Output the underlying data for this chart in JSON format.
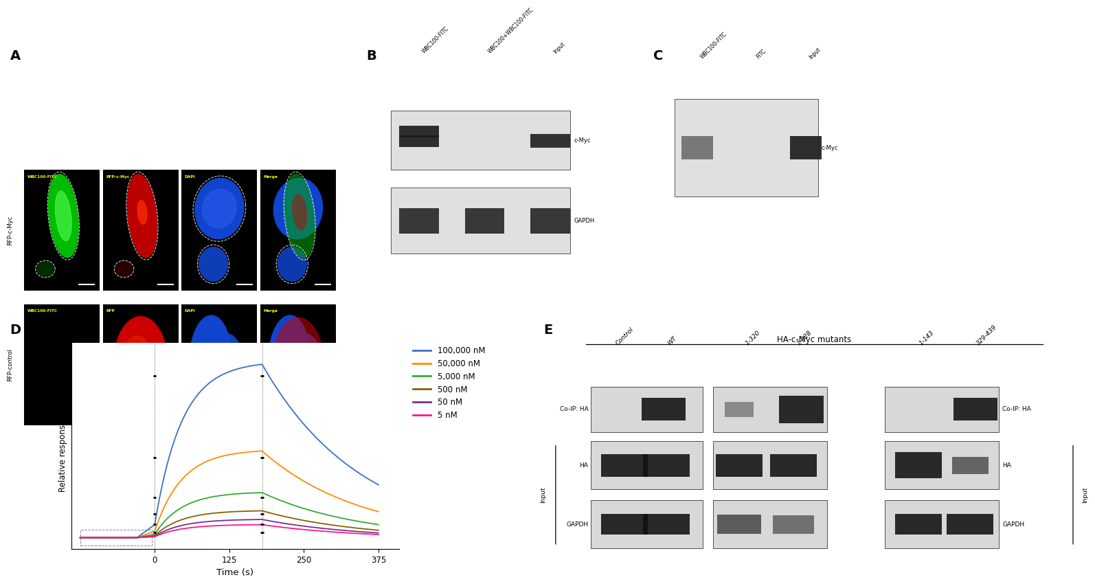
{
  "panel_label_fontsize": 14,
  "panel_label_fontweight": "bold",
  "spr_legend_labels": [
    "100,000 nM",
    "50,000 nM",
    "5,000 nM",
    "500 nM",
    "50 nM",
    "5 nM"
  ],
  "spr_colors": [
    "#3B6FCC",
    "#FF8C00",
    "#33AA33",
    "#8B6000",
    "#7B2D8B",
    "#FF1493"
  ],
  "spr_xlabel": "Time (s)",
  "spr_ylabel": "Relative response (RU)",
  "channel_names_r1": [
    "WBC100-FITC",
    "RFP-c-Myc",
    "DAPI",
    "Merge"
  ],
  "channel_names_r2": [
    "WBC100-FITC",
    "RFP",
    "DAPI",
    "Merge"
  ],
  "row1_label": "RFP-c-Myc",
  "row2_label": "RFP-control",
  "wb_B_col_labels": [
    "WBC100-FITC",
    "WBC100+WBC100-FITC",
    "Input"
  ],
  "wb_C_col_labels": [
    "WBC100-FITC",
    "FITC",
    "Input"
  ],
  "coip_title": "HA-c-Myc mutants",
  "coip_left_cols": [
    "Control",
    "WT",
    "1-320",
    "1-328"
  ],
  "coip_right_cols": [
    "1-143",
    "329-439"
  ],
  "background_color": "#ffffff",
  "figure_width": 15.92,
  "figure_height": 7.99
}
